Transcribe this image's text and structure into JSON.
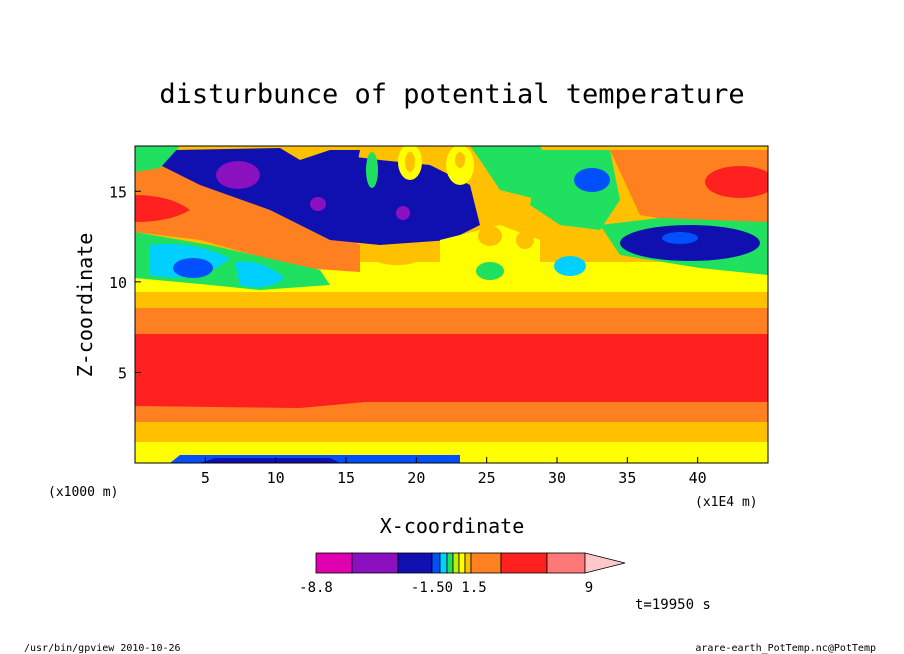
{
  "chart_data": {
    "type": "heatmap",
    "title": "disturbunce of potential temperature",
    "xlabel": "X-coordinate",
    "ylabel": "Z-coordinate",
    "x_unit_left": "(x1000 m)",
    "x_unit_right": "(x1E4 m)",
    "xlim": [
      0,
      45
    ],
    "ylim": [
      0,
      17.5
    ],
    "xticks": [
      "5",
      "10",
      "15",
      "20",
      "25",
      "30",
      "35",
      "40"
    ],
    "yticks": [
      "5",
      "10",
      "15"
    ],
    "colorbar": {
      "colors": [
        "#e000b0",
        "#8a10c0",
        "#1010b0",
        "#0050ff",
        "#00d0ff",
        "#20e060",
        "#c0f000",
        "#ffff00",
        "#ffc000",
        "#ff8020",
        "#ff2020",
        "#ff7878",
        "#ffc8c8"
      ],
      "labels": [
        "-8.8",
        "-1.50",
        "1.5",
        "9"
      ]
    },
    "time_label": "t=19950 s"
  },
  "footer": {
    "left": "/usr/bin/gpview   2010-10-26",
    "right": "arare-earth_PotTemp.nc@PotTemp"
  }
}
